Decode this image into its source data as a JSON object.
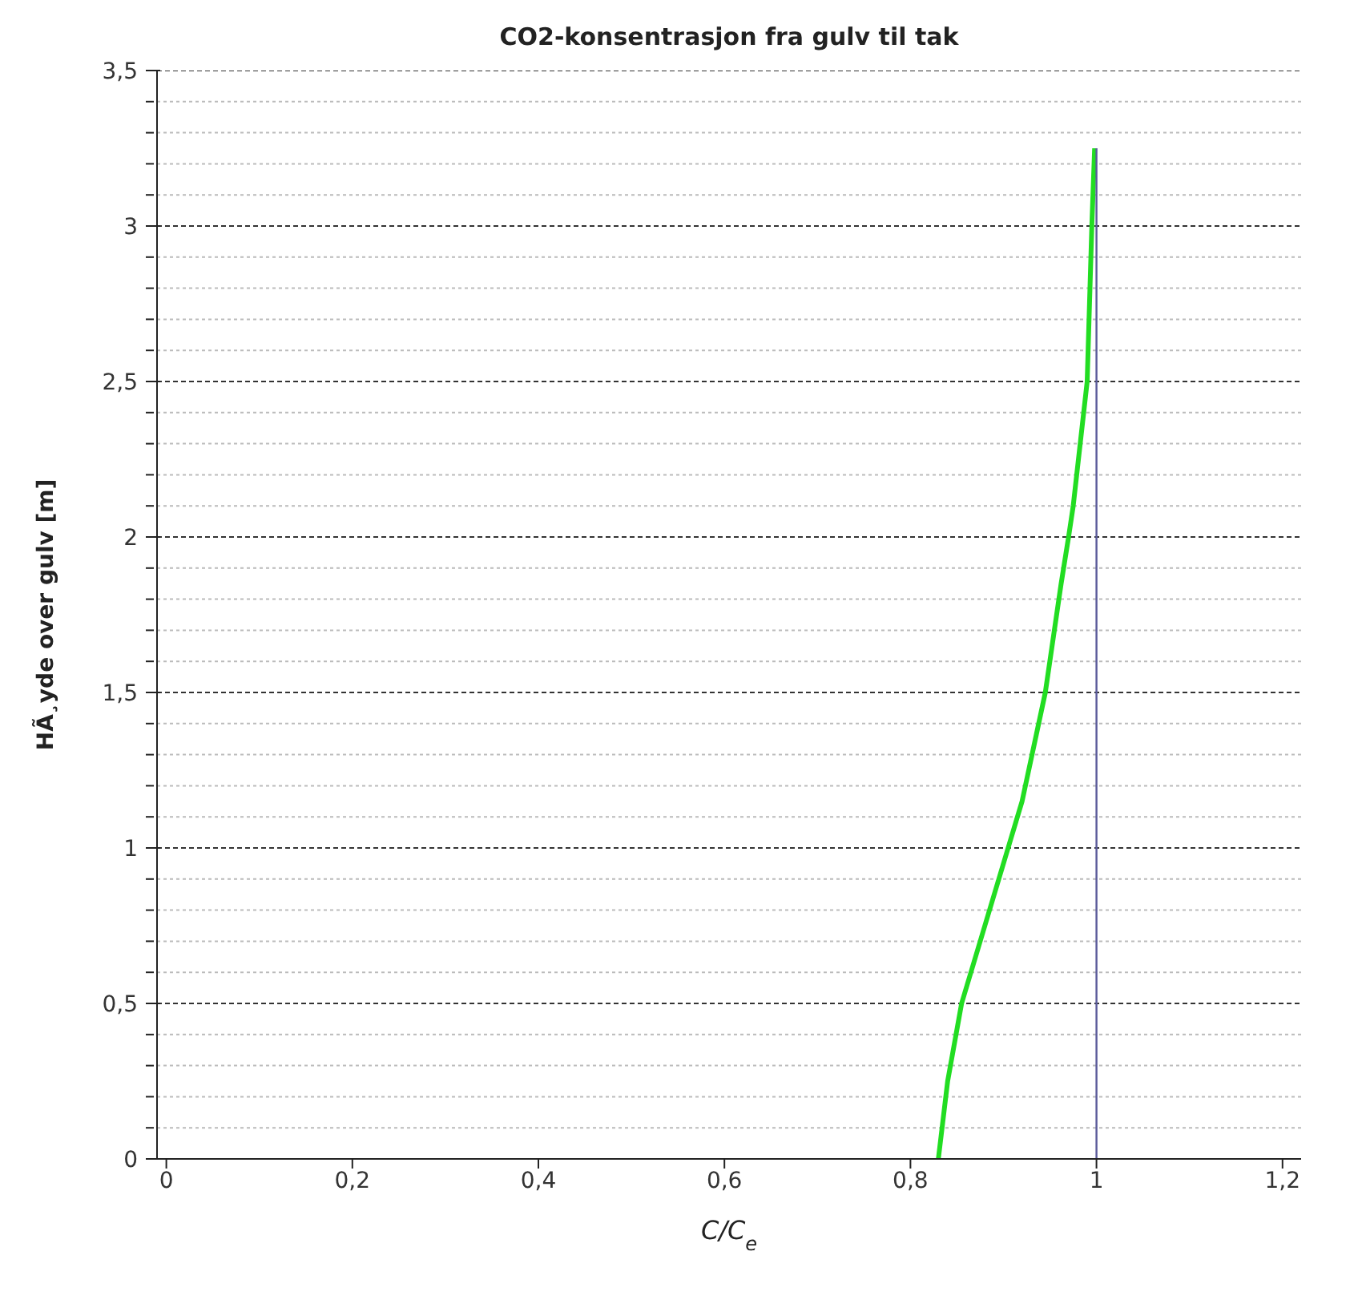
{
  "chart_data": {
    "type": "line",
    "title": "CO2-konsentrasjon fra gulv til tak",
    "xlabel": "C/C$_{e}$",
    "ylabel": "HÃ¸yde over gulv [m]",
    "series": [
      {
        "color": "#22dd22",
        "x": [
          0.83,
          0.84,
          0.855,
          0.88,
          0.905,
          0.92,
          0.945,
          0.962,
          0.97,
          0.975,
          0.99,
          0.995,
          0.998
        ],
        "values": [
          0,
          0.25,
          0.5,
          0.75,
          1.0,
          1.15,
          1.5,
          1.85,
          2.0,
          2.1,
          2.5,
          3.0,
          3.25
        ]
      },
      {
        "color": "#5a5a9a",
        "x": [
          1,
          1
        ],
        "values": [
          0,
          3.25
        ]
      }
    ],
    "xlim": [
      -0.01,
      1.22
    ],
    "xticks": [
      0,
      {
        "value": 0.2,
        "label": "0,2"
      },
      {
        "value": 0.4,
        "label": "0,4"
      },
      {
        "value": 0.6,
        "label": "0,6"
      },
      {
        "value": 0.8,
        "label": "0,8"
      },
      1,
      {
        "value": 1.2,
        "label": "1,2"
      }
    ],
    "ylim": [
      0,
      3.5
    ],
    "yticks": [
      0,
      {
        "value": 0.1,
        "label": null
      },
      {
        "value": 0.2,
        "label": null
      },
      {
        "value": 0.3,
        "label": null
      },
      {
        "value": 0.4,
        "label": null
      },
      {
        "value": 0.5,
        "label": "0,5"
      },
      {
        "value": 0.6,
        "label": null
      },
      {
        "value": 0.7,
        "label": null
      },
      {
        "value": 0.8,
        "label": null
      },
      {
        "value": 0.9,
        "label": null
      },
      1,
      {
        "value": 1.1,
        "label": null
      },
      {
        "value": 1.2,
        "label": null
      },
      {
        "value": 1.3,
        "label": null
      },
      {
        "value": 1.4,
        "label": null
      },
      {
        "value": 1.5,
        "label": "1,5"
      },
      {
        "value": 1.6,
        "label": null
      },
      {
        "value": 1.7,
        "label": null
      },
      {
        "value": 1.8,
        "label": null
      },
      {
        "value": 1.9,
        "label": null
      },
      2,
      {
        "value": 2.1,
        "label": null
      },
      {
        "value": 2.2,
        "label": null
      },
      {
        "value": 2.3,
        "label": null
      },
      {
        "value": 2.4,
        "label": null
      },
      {
        "value": 2.5,
        "label": "2,5"
      },
      {
        "value": 2.6,
        "label": null
      },
      {
        "value": 2.7,
        "label": null
      },
      {
        "value": 2.8,
        "label": null
      },
      {
        "value": 2.9,
        "label": null
      },
      3,
      {
        "value": 3.1,
        "label": null
      },
      {
        "value": 3.2,
        "label": null
      },
      {
        "value": 3.3,
        "label": null
      },
      {
        "value": 3.4,
        "label": null
      },
      {
        "value": 3.5,
        "label": "3,5"
      }
    ],
    "grid": "y",
    "marker": "none",
    "line_style": "solid"
  }
}
